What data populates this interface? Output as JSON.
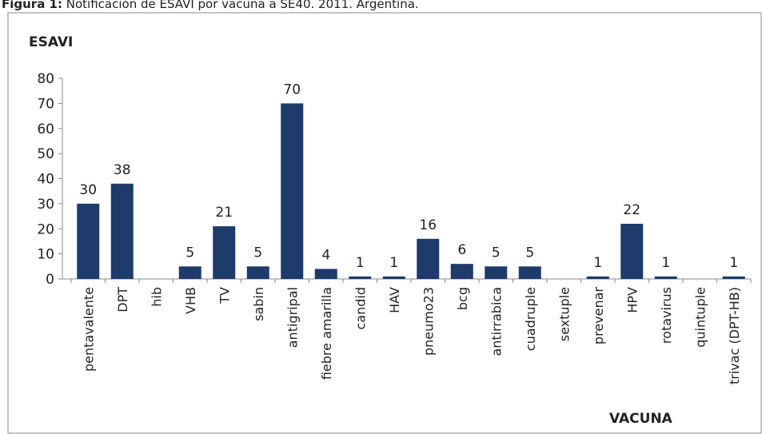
{
  "chart_data": {
    "type": "bar",
    "caption_label": "Figura 1:",
    "caption": "Notificación de ESAVI por vacuna a SE40. 2011. Argentina.",
    "y_label": "ESAVI",
    "x_label": "VACUNA",
    "categories": [
      "pentavalente",
      "DPT",
      "hib",
      "VHB",
      "TV",
      "sabin",
      "antigripal",
      "fiebre amarilla",
      "candid",
      "HAV",
      "pneumo23",
      "bcg",
      "antirrabica",
      "cuadruple",
      "sextuple",
      "prevenar",
      "HPV",
      "rotavirus",
      "quintuple",
      "trivac (DPT-HB)"
    ],
    "values": [
      30,
      38,
      null,
      5,
      21,
      5,
      70,
      4,
      1,
      1,
      16,
      6,
      5,
      5,
      null,
      1,
      22,
      1,
      null,
      1
    ],
    "color": "#1f3b6b",
    "ylim": [
      0,
      80
    ],
    "yticks": [
      0,
      10,
      20,
      30,
      40,
      50,
      60,
      70,
      80
    ],
    "grid": false
  }
}
